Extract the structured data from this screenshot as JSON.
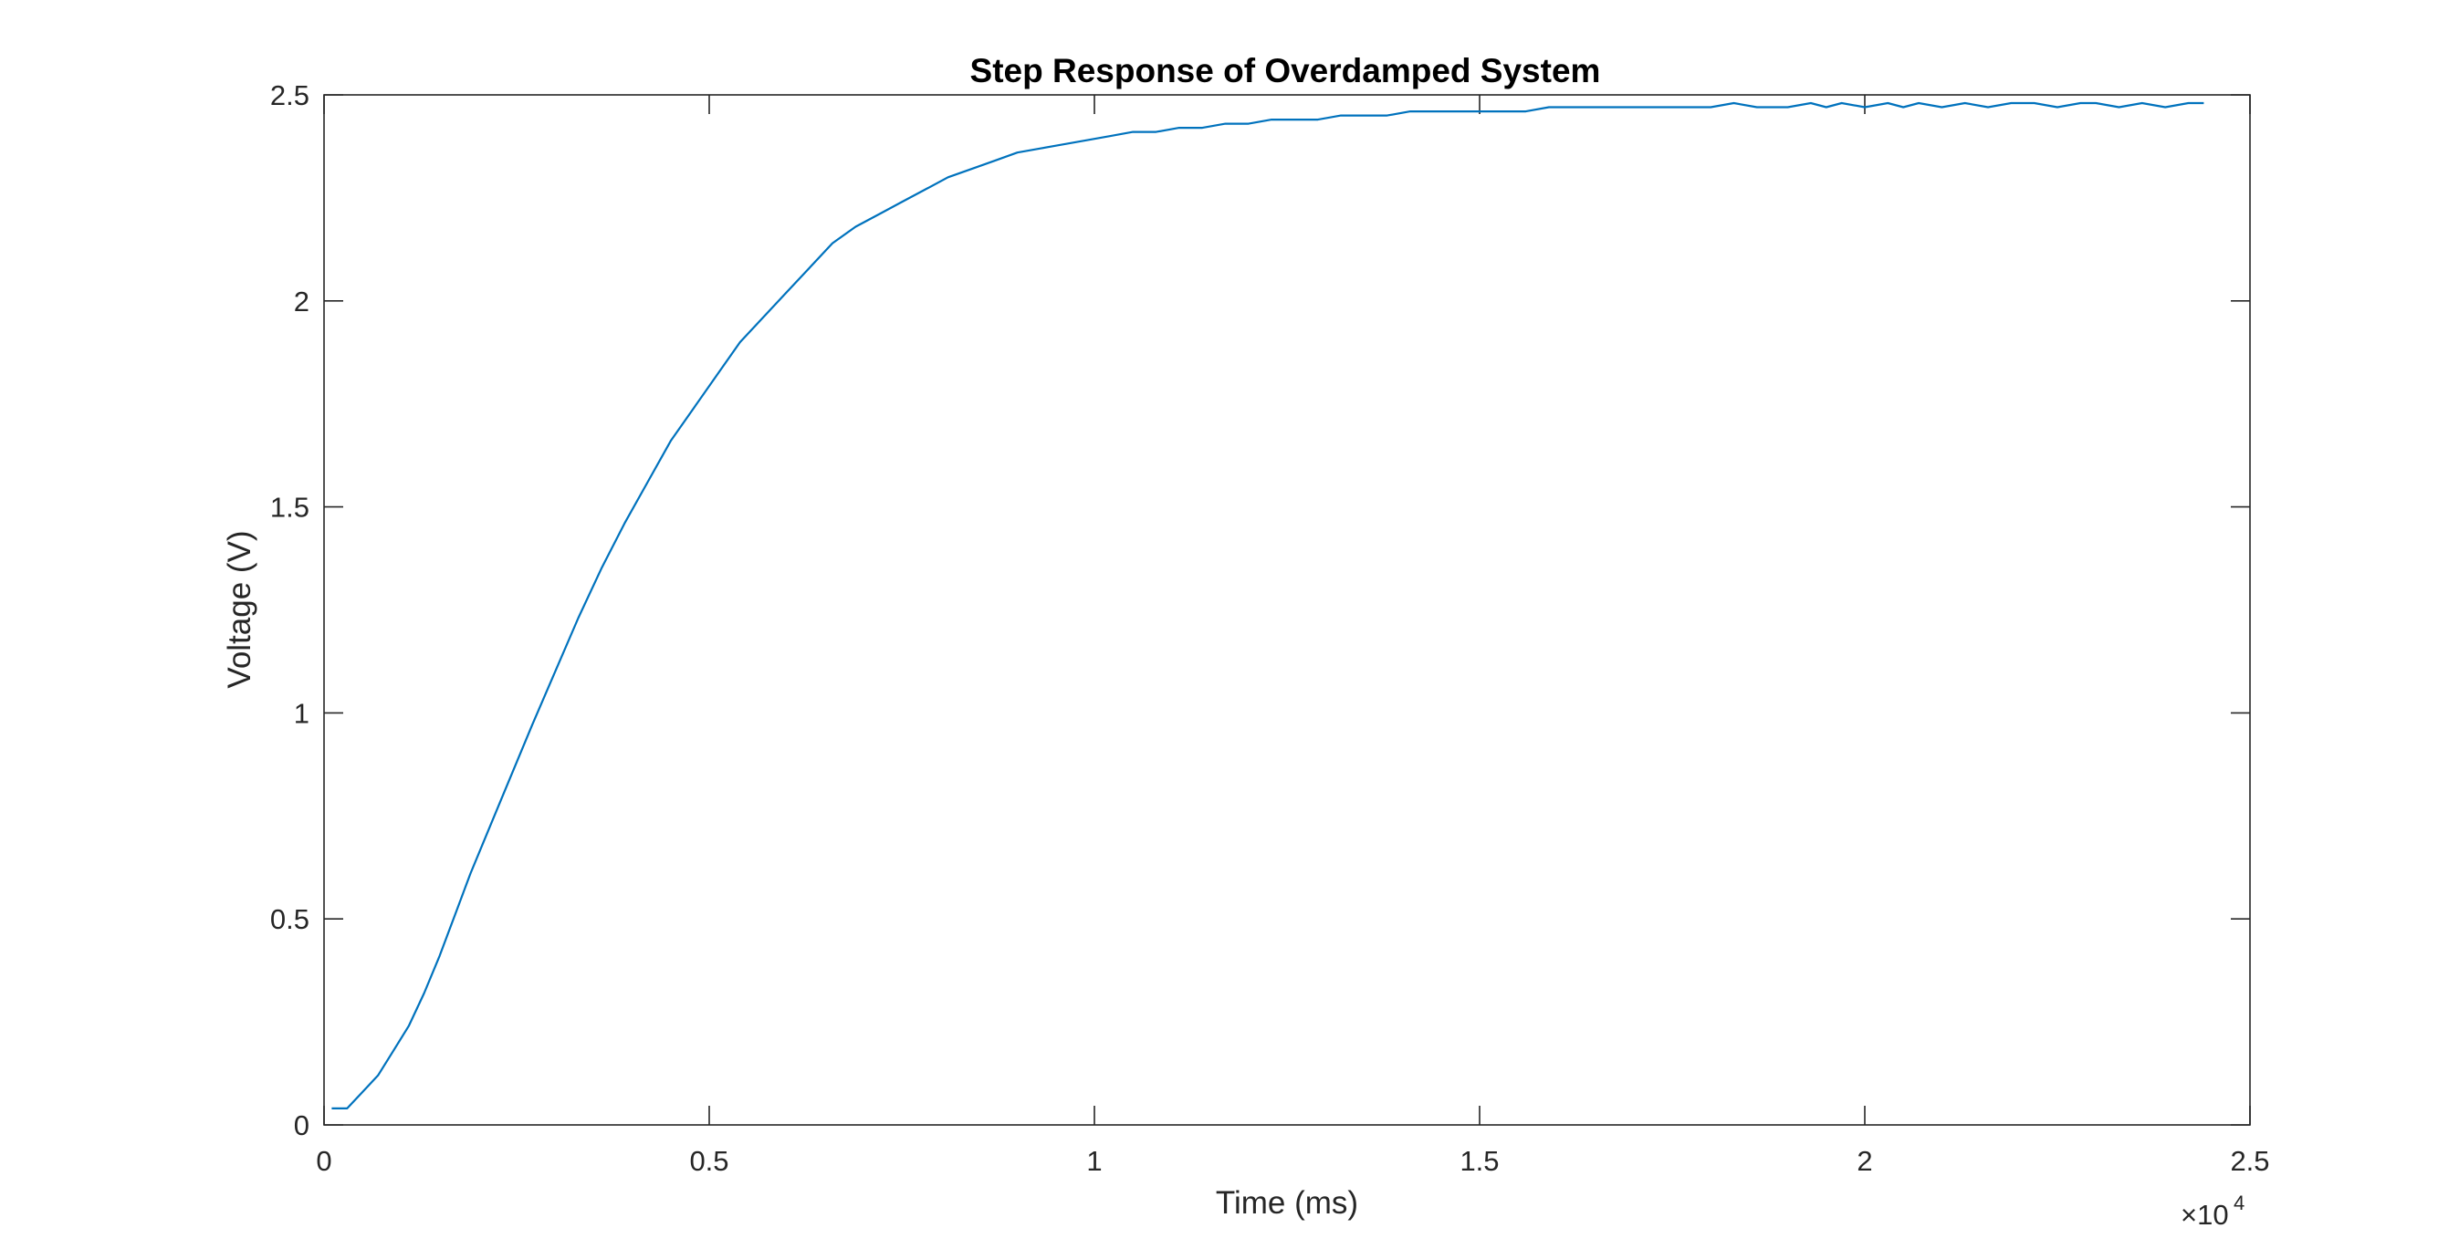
{
  "chart_data": {
    "type": "line",
    "title": "Step Response of Overdamped System",
    "xlabel": "Time (ms)",
    "ylabel": "Voltage (V)",
    "xlim": [
      0,
      25000
    ],
    "ylim": [
      0,
      2.5
    ],
    "x_ticks": [
      0,
      5000,
      10000,
      15000,
      20000,
      25000
    ],
    "x_tick_labels": [
      "0",
      "0.5",
      "1",
      "1.5",
      "2",
      "2.5"
    ],
    "x_exponent_label": "×10",
    "x_exponent_power": "4",
    "y_ticks": [
      0,
      0.5,
      1,
      1.5,
      2,
      2.5
    ],
    "y_tick_labels": [
      "0",
      "0.5",
      "1",
      "1.5",
      "2",
      "2.5"
    ],
    "grid": false,
    "line_color": "#0072BD",
    "axis_color": "#262626",
    "series": [
      {
        "x": [
          100,
          300,
          500,
          700,
          900,
          1100,
          1300,
          1500,
          1700,
          1900,
          2100,
          2300,
          2500,
          2700,
          3000,
          3300,
          3600,
          3900,
          4200,
          4500,
          4800,
          5100,
          5400,
          5700,
          6000,
          6300,
          6600,
          6900,
          7200,
          7500,
          7800,
          8100,
          8400,
          8700,
          9000,
          9300,
          9600,
          9900,
          10200,
          10500,
          10800,
          11100,
          11400,
          11700,
          12000,
          12300,
          12600,
          12900,
          13200,
          13500,
          13800,
          14100,
          14400,
          14700,
          15000,
          15300,
          15600,
          15900,
          16500,
          17000,
          17500,
          18000,
          18300,
          18600,
          19000,
          19300,
          19500,
          19700,
          20000,
          20300,
          20500,
          20700,
          21000,
          21300,
          21600,
          21900,
          22200,
          22500,
          22800,
          23000,
          23300,
          23600,
          23900,
          24200,
          24400
        ],
        "y": [
          0.04,
          0.04,
          0.08,
          0.12,
          0.18,
          0.24,
          0.32,
          0.41,
          0.51,
          0.61,
          0.7,
          0.79,
          0.88,
          0.97,
          1.1,
          1.23,
          1.35,
          1.46,
          1.56,
          1.66,
          1.74,
          1.82,
          1.9,
          1.96,
          2.02,
          2.08,
          2.14,
          2.18,
          2.21,
          2.24,
          2.27,
          2.3,
          2.32,
          2.34,
          2.36,
          2.37,
          2.38,
          2.39,
          2.4,
          2.41,
          2.41,
          2.42,
          2.42,
          2.43,
          2.43,
          2.44,
          2.44,
          2.44,
          2.45,
          2.45,
          2.45,
          2.46,
          2.46,
          2.46,
          2.46,
          2.46,
          2.46,
          2.47,
          2.47,
          2.47,
          2.47,
          2.47,
          2.48,
          2.47,
          2.47,
          2.48,
          2.47,
          2.48,
          2.47,
          2.48,
          2.47,
          2.48,
          2.47,
          2.48,
          2.47,
          2.48,
          2.48,
          2.47,
          2.48,
          2.48,
          2.47,
          2.48,
          2.47,
          2.48,
          2.48
        ]
      }
    ]
  }
}
